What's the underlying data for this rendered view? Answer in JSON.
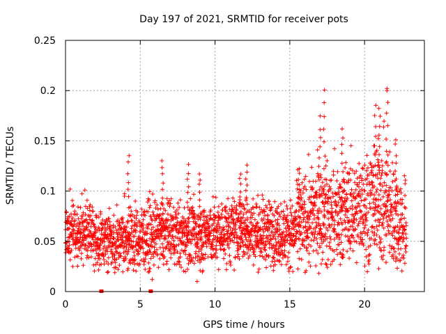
{
  "chart_data": {
    "type": "scatter",
    "title": "Day 197 of 2021, SRMTID for receiver pots",
    "xlabel": "GPS time / hours",
    "ylabel": "SRMTID / TECUs",
    "xlim": [
      0,
      24
    ],
    "ylim": [
      0,
      0.25
    ],
    "grid": true,
    "x_ticks": [
      0,
      5,
      10,
      15,
      20
    ],
    "x_tick_labels": [
      "0",
      "5",
      "10",
      "15",
      "20"
    ],
    "y_ticks": [
      0,
      0.05,
      0.1,
      0.15,
      0.2,
      0.25
    ],
    "y_tick_labels": [
      "0",
      "0.05",
      "0.1",
      "0.15",
      "0.2",
      "0.25"
    ],
    "marker": "plus",
    "color": "#ff0000",
    "series": [
      {
        "name": "SRMTID",
        "trend": [
          [
            0.0,
            0.06
          ],
          [
            1.0,
            0.058
          ],
          [
            2.0,
            0.055
          ],
          [
            3.0,
            0.05
          ],
          [
            4.0,
            0.052
          ],
          [
            5.0,
            0.053
          ],
          [
            6.0,
            0.058
          ],
          [
            7.0,
            0.058
          ],
          [
            8.0,
            0.055
          ],
          [
            9.0,
            0.055
          ],
          [
            10.0,
            0.058
          ],
          [
            11.0,
            0.06
          ],
          [
            12.0,
            0.062
          ],
          [
            13.0,
            0.06
          ],
          [
            14.0,
            0.058
          ],
          [
            15.0,
            0.058
          ],
          [
            16.0,
            0.068
          ],
          [
            17.0,
            0.075
          ],
          [
            18.0,
            0.075
          ],
          [
            19.0,
            0.08
          ],
          [
            20.0,
            0.085
          ],
          [
            21.0,
            0.09
          ],
          [
            22.0,
            0.075
          ],
          [
            22.8,
            0.06
          ]
        ],
        "n_points": 2600,
        "x_range": [
          0,
          22.8
        ],
        "max_point": [
          21.5,
          0.202
        ],
        "peaks": [
          [
            4.2,
            0.138
          ],
          [
            6.5,
            0.133
          ],
          [
            8.2,
            0.128
          ],
          [
            9.0,
            0.12
          ],
          [
            11.7,
            0.12
          ],
          [
            12.1,
            0.128
          ],
          [
            15.6,
            0.125
          ],
          [
            17.0,
            0.175
          ],
          [
            17.3,
            0.202
          ],
          [
            18.5,
            0.165
          ],
          [
            20.7,
            0.187
          ],
          [
            21.0,
            0.185
          ],
          [
            21.5,
            0.202
          ],
          [
            22.1,
            0.155
          ]
        ],
        "low_outliers": [
          [
            8.8,
            0.01
          ],
          [
            5.8,
            0.012
          ],
          [
            5.6,
            0.02
          ],
          [
            15.2,
            0.02
          ]
        ],
        "zero_points": [
          [
            2.4,
            0.0
          ],
          [
            5.7,
            0.0
          ]
        ]
      }
    ]
  }
}
